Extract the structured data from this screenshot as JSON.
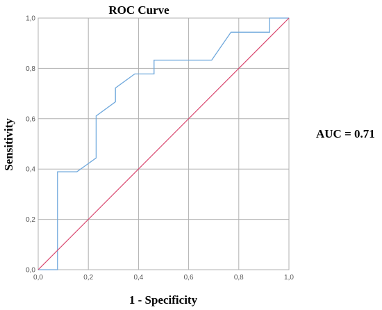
{
  "chart_data": {
    "type": "line",
    "title": "ROC Curve",
    "xlabel": "1 - Specificity",
    "ylabel": "Sensitivity",
    "xlim": [
      0,
      1
    ],
    "ylim": [
      0,
      1
    ],
    "grid": true,
    "x_ticks": [
      "0,0",
      "0,2",
      "0,4",
      "0,6",
      "0,8",
      "1,0"
    ],
    "y_ticks": [
      "0,0",
      "0,2",
      "0,4",
      "0,6",
      "0,8",
      "1,0"
    ],
    "x_tick_values": [
      0,
      0.2,
      0.4,
      0.6,
      0.8,
      1.0
    ],
    "y_tick_values": [
      0,
      0.2,
      0.4,
      0.6,
      0.8,
      1.0
    ],
    "annotation": "AUC = 0.71",
    "series": [
      {
        "color": "#6fa8dc",
        "points": [
          [
            0,
            0
          ],
          [
            0.077,
            0
          ],
          [
            0.077,
            0.389
          ],
          [
            0.154,
            0.389
          ],
          [
            0.231,
            0.444
          ],
          [
            0.231,
            0.611
          ],
          [
            0.308,
            0.667
          ],
          [
            0.308,
            0.722
          ],
          [
            0.385,
            0.778
          ],
          [
            0.462,
            0.778
          ],
          [
            0.462,
            0.833
          ],
          [
            0.692,
            0.833
          ],
          [
            0.769,
            0.944
          ],
          [
            0.923,
            0.944
          ],
          [
            0.923,
            1.0
          ],
          [
            1.0,
            1.0
          ]
        ]
      },
      {
        "color": "#d9466e",
        "points": [
          [
            0,
            0
          ],
          [
            1,
            1
          ]
        ]
      }
    ],
    "grid_color": "#b0b0b0"
  }
}
